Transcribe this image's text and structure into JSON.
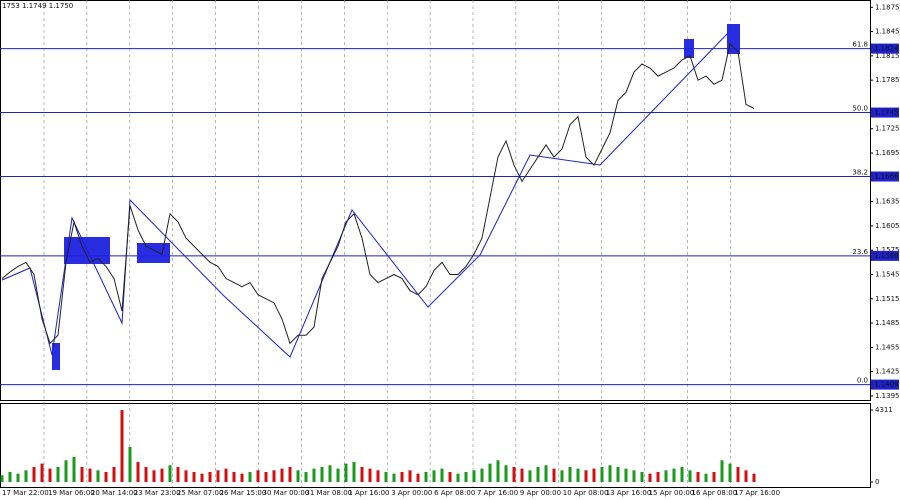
{
  "chart_data": [
    {
      "type": "line",
      "header": "1753 1.1749 1.1750",
      "color": "#222222",
      "values": [
        1.154,
        1.1548,
        1.1555,
        1.156,
        1.1545,
        1.149,
        1.146,
        1.147,
        1.156,
        1.161,
        1.158,
        1.156,
        1.1565,
        1.1555,
        1.154,
        1.15,
        1.163,
        1.16,
        1.158,
        1.1575,
        1.157,
        1.162,
        1.161,
        1.159,
        1.158,
        1.157,
        1.156,
        1.1555,
        1.154,
        1.1535,
        1.153,
        1.1535,
        1.152,
        1.1515,
        1.151,
        1.149,
        1.146,
        1.147,
        1.147,
        1.148,
        1.154,
        1.156,
        1.158,
        1.161,
        1.162,
        1.159,
        1.1545,
        1.1535,
        1.154,
        1.1545,
        1.154,
        1.1525,
        1.152,
        1.153,
        1.155,
        1.156,
        1.1545,
        1.1545,
        1.1555,
        1.157,
        1.159,
        1.164,
        1.169,
        1.171,
        1.168,
        1.166,
        1.1675,
        1.169,
        1.1705,
        1.169,
        1.17,
        1.173,
        1.174,
        1.169,
        1.168,
        1.17,
        1.172,
        1.176,
        1.177,
        1.1795,
        1.1805,
        1.18,
        1.179,
        1.1795,
        1.18,
        1.181,
        1.1815,
        1.1785,
        1.179,
        1.178,
        1.1785,
        1.183,
        1.182,
        1.1755,
        1.175
      ],
      "ylim": [
        1.139,
        1.1884
      ],
      "yticks": [
        1.1395,
        1.1425,
        1.1455,
        1.1485,
        1.1515,
        1.1545,
        1.1575,
        1.1605,
        1.1635,
        1.1695,
        1.1725,
        1.1785,
        1.1815,
        1.1845,
        1.1875
      ],
      "levels": [
        {
          "name": "61.8",
          "value": 1.1824
        },
        {
          "name": "50.0",
          "value": 1.1745
        },
        {
          "name": "38.2",
          "value": 1.1666
        },
        {
          "name": "23.6",
          "value": 1.1568
        },
        {
          "name": "0.0",
          "value": 1.1409
        }
      ],
      "level_color": "#1e22c8",
      "x_labels": [
        "17 Mar 22:00",
        "19 Mar 06:00",
        "20 Mar 14:00",
        "23 Mar 23:00",
        "25 Mar 07:00",
        "26 Mar 15:00",
        "30 Mar 00:00",
        "31 Mar 08:00",
        "1 Apr 16:00",
        "3 Apr 00:00",
        "6 Apr 08:00",
        "7 Apr 16:00",
        "9 Apr 00:00",
        "10 Apr 08:00",
        "13 Apr 16:00",
        "15 Apr 00:00",
        "16 Apr 08:00",
        "17 Apr 16:00"
      ]
    },
    {
      "type": "bar",
      "up_color": "#1a9a1a",
      "down_color": "#d01010",
      "values": [
        400,
        600,
        500,
        700,
        900,
        1100,
        800,
        900,
        1300,
        1500,
        900,
        800,
        700,
        600,
        900,
        4311,
        2100,
        1200,
        900,
        700,
        800,
        1000,
        900,
        700,
        600,
        500,
        600,
        700,
        800,
        600,
        500,
        600,
        700,
        600,
        700,
        800,
        900,
        700,
        600,
        800,
        900,
        1000,
        800,
        1100,
        1200,
        900,
        800,
        700,
        600,
        500,
        600,
        700,
        500,
        600,
        700,
        800,
        600,
        500,
        600,
        700,
        800,
        1100,
        1300,
        1000,
        900,
        800,
        700,
        900,
        1000,
        800,
        700,
        900,
        800,
        700,
        800,
        900,
        1000,
        900,
        800,
        700,
        600,
        500,
        600,
        700,
        800,
        900,
        700,
        600,
        500,
        600,
        1300,
        1100,
        900,
        700,
        500
      ],
      "ylim": [
        0,
        4730
      ],
      "yticks": [
        0,
        4311
      ]
    }
  ]
}
